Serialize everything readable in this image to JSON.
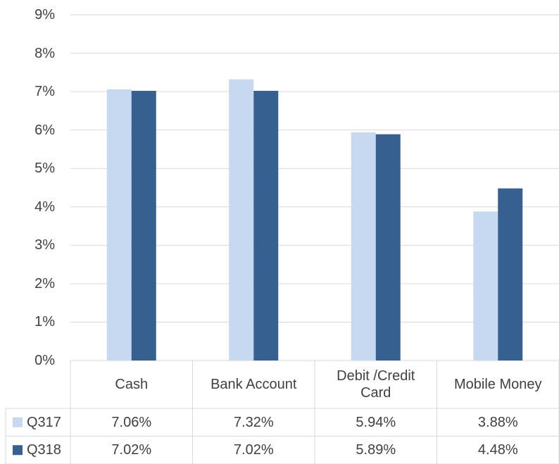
{
  "chart_data": {
    "type": "bar",
    "categories": [
      "Cash",
      "Bank Account",
      "Debit /Credit Card",
      "Mobile Money"
    ],
    "series": [
      {
        "name": "Q317",
        "color": "#c6d9f0",
        "values": [
          7.06,
          7.32,
          5.94,
          3.88
        ],
        "value_labels": [
          "7.06%",
          "7.32%",
          "5.94%",
          "3.88%"
        ]
      },
      {
        "name": "Q318",
        "color": "#35608f",
        "values": [
          7.02,
          7.02,
          5.89,
          4.48
        ],
        "value_labels": [
          "7.02%",
          "7.02%",
          "5.89%",
          "4.48%"
        ]
      }
    ],
    "ylim": [
      0,
      9
    ],
    "yticks": [
      {
        "value": 0,
        "label": "0%"
      },
      {
        "value": 1,
        "label": "1%"
      },
      {
        "value": 2,
        "label": "2%"
      },
      {
        "value": 3,
        "label": "3%"
      },
      {
        "value": 4,
        "label": "4%"
      },
      {
        "value": 5,
        "label": "5%"
      },
      {
        "value": 6,
        "label": "6%"
      },
      {
        "value": 7,
        "label": "7%"
      },
      {
        "value": 8,
        "label": "8%"
      },
      {
        "value": 9,
        "label": "9%"
      }
    ],
    "grid": true,
    "data_table": true
  }
}
